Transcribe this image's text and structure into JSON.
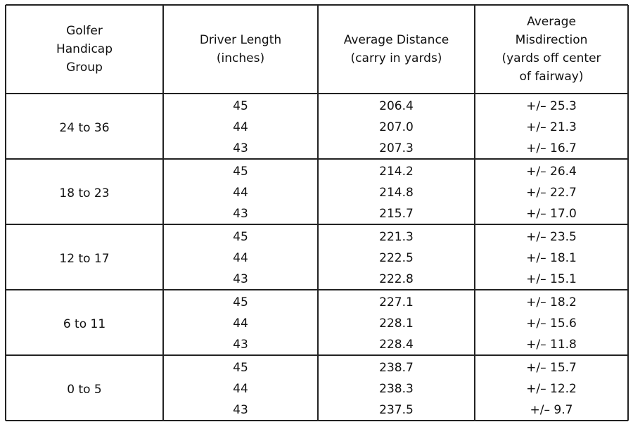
{
  "header": [
    [
      "Golfer",
      "Handicap",
      "Group"
    ],
    [
      "Driver Length",
      "(inches)"
    ],
    [
      "Average Distance",
      "(carry in yards)"
    ],
    [
      "Average",
      "Misdirection",
      "(yards off center",
      "of fairway)"
    ]
  ],
  "groups": [
    {
      "label": "24 to 36",
      "rows": [
        [
          "45",
          "206.4",
          "+/– 25.3"
        ],
        [
          "44",
          "207.0",
          "+/– 21.3"
        ],
        [
          "43",
          "207.3",
          "+/– 16.7"
        ]
      ]
    },
    {
      "label": "18 to 23",
      "rows": [
        [
          "45",
          "214.2",
          "+/– 26.4"
        ],
        [
          "44",
          "214.8",
          "+/– 22.7"
        ],
        [
          "43",
          "215.7",
          "+/– 17.0"
        ]
      ]
    },
    {
      "label": "12 to 17",
      "rows": [
        [
          "45",
          "221.3",
          "+/– 23.5"
        ],
        [
          "44",
          "222.5",
          "+/– 18.1"
        ],
        [
          "43",
          "222.8",
          "+/– 15.1"
        ]
      ]
    },
    {
      "label": "6 to 11",
      "rows": [
        [
          "45",
          "227.1",
          "+/– 18.2"
        ],
        [
          "44",
          "228.1",
          "+/– 15.6"
        ],
        [
          "43",
          "228.4",
          "+/– 11.8"
        ]
      ]
    },
    {
      "label": "0 to 5",
      "rows": [
        [
          "45",
          "238.7",
          "+/– 15.7"
        ],
        [
          "44",
          "238.3",
          "+/– 12.2"
        ],
        [
          "43",
          "237.5",
          "+/– 9.7"
        ]
      ]
    }
  ]
}
